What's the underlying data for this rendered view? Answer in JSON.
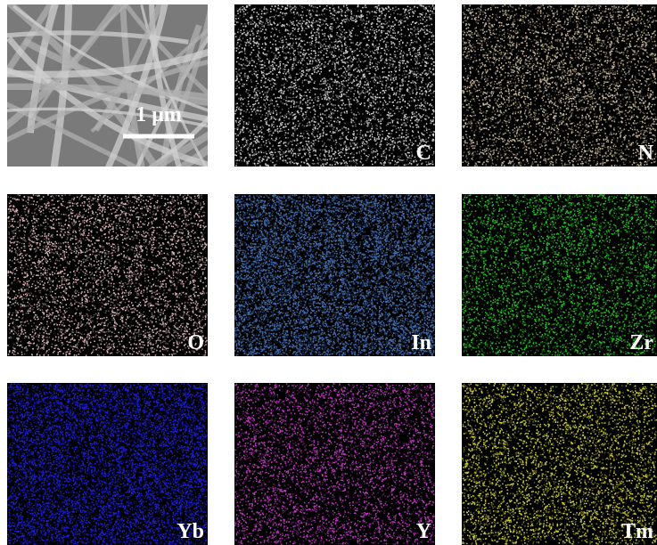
{
  "scale_bar": "1 μm",
  "maps": [
    {
      "element": "C",
      "color": "#e6e6e6"
    },
    {
      "element": "N",
      "color": "#d8c8a8"
    },
    {
      "element": "O",
      "color": "#f0c8c8"
    },
    {
      "element": "In",
      "color": "#4a78c0"
    },
    {
      "element": "Zr",
      "color": "#30d030"
    },
    {
      "element": "Yb",
      "color": "#2020e0"
    },
    {
      "element": "Y",
      "color": "#d040d0"
    },
    {
      "element": "Tm",
      "color": "#e0e040"
    }
  ]
}
